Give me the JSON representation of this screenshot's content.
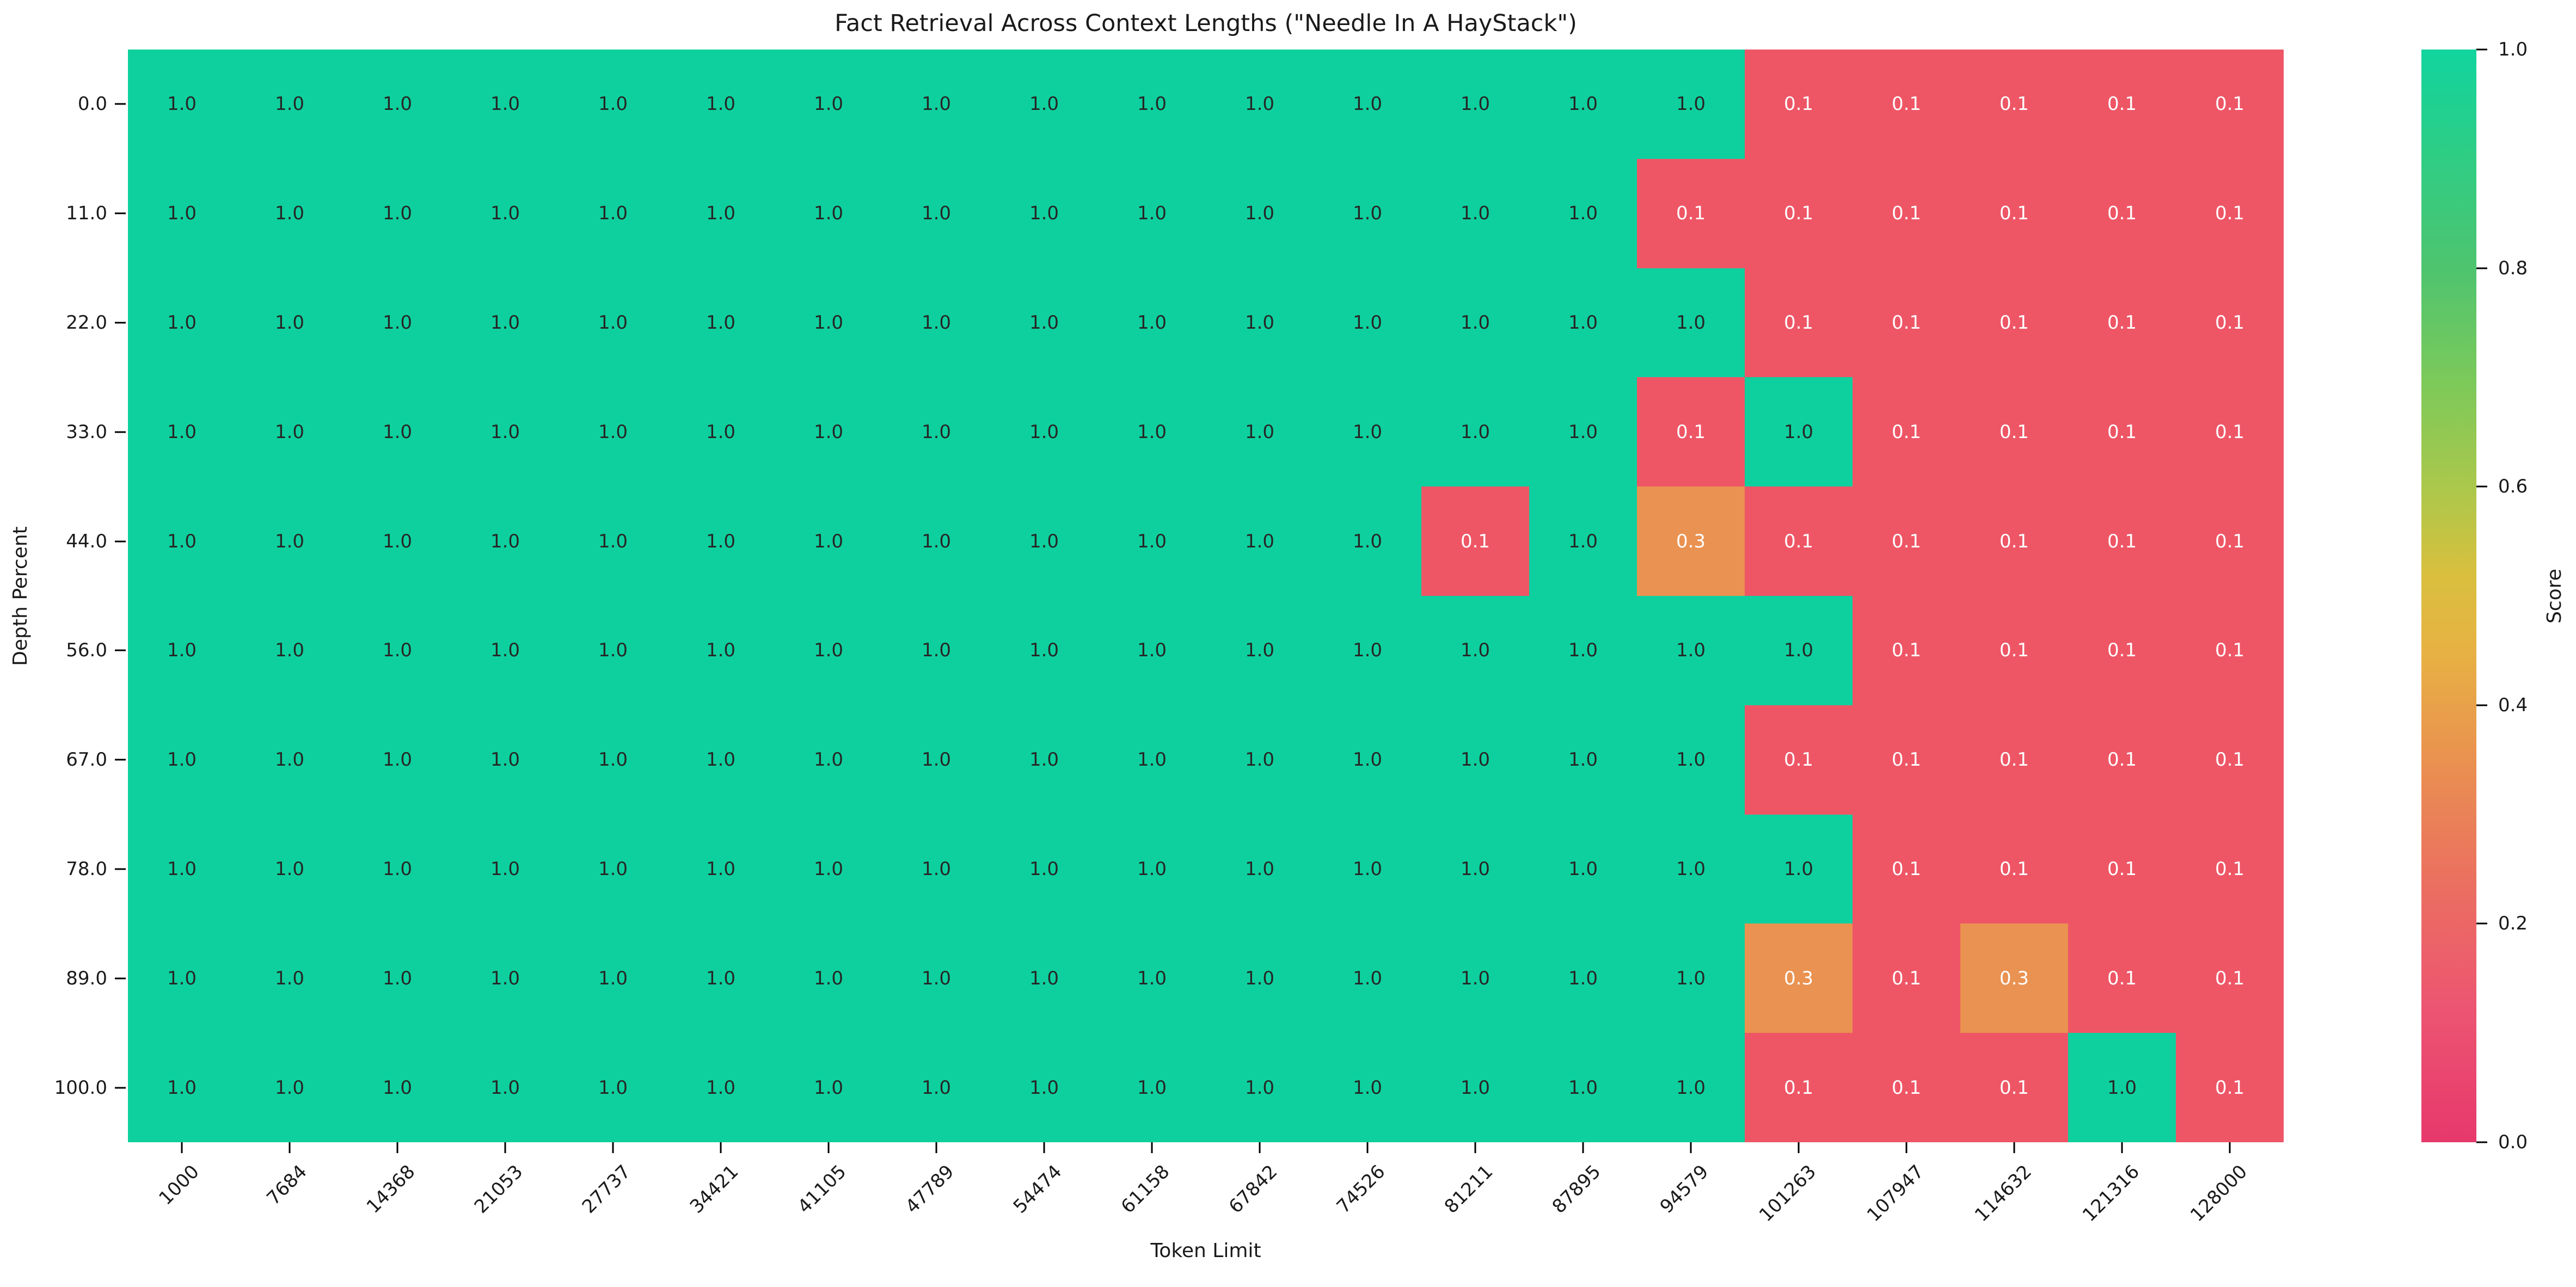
{
  "chart_data": {
    "type": "heatmap",
    "title": "Fact Retrieval Across Context Lengths (\"Needle In A HayStack\")",
    "xlabel": "Token Limit",
    "ylabel": "Depth Percent",
    "colorbar_label": "Score",
    "colorbar_ticks": [
      "1.0",
      "0.8",
      "0.6",
      "0.4",
      "0.2",
      "0.0"
    ],
    "colorbar_range": [
      0.0,
      1.0
    ],
    "x_categories": [
      "1000",
      "7684",
      "14368",
      "21053",
      "27737",
      "34421",
      "41105",
      "47789",
      "54474",
      "61158",
      "67842",
      "74526",
      "81211",
      "87895",
      "94579",
      "101263",
      "107947",
      "114632",
      "121316",
      "128000"
    ],
    "y_categories": [
      "0.0",
      "11.0",
      "22.0",
      "33.0",
      "44.0",
      "56.0",
      "67.0",
      "78.0",
      "89.0",
      "100.0"
    ],
    "rows": [
      [
        "1.0",
        "1.0",
        "1.0",
        "1.0",
        "1.0",
        "1.0",
        "1.0",
        "1.0",
        "1.0",
        "1.0",
        "1.0",
        "1.0",
        "1.0",
        "1.0",
        "1.0",
        "0.1",
        "0.1",
        "0.1",
        "0.1",
        "0.1"
      ],
      [
        "1.0",
        "1.0",
        "1.0",
        "1.0",
        "1.0",
        "1.0",
        "1.0",
        "1.0",
        "1.0",
        "1.0",
        "1.0",
        "1.0",
        "1.0",
        "1.0",
        "0.1",
        "0.1",
        "0.1",
        "0.1",
        "0.1",
        "0.1"
      ],
      [
        "1.0",
        "1.0",
        "1.0",
        "1.0",
        "1.0",
        "1.0",
        "1.0",
        "1.0",
        "1.0",
        "1.0",
        "1.0",
        "1.0",
        "1.0",
        "1.0",
        "1.0",
        "0.1",
        "0.1",
        "0.1",
        "0.1",
        "0.1"
      ],
      [
        "1.0",
        "1.0",
        "1.0",
        "1.0",
        "1.0",
        "1.0",
        "1.0",
        "1.0",
        "1.0",
        "1.0",
        "1.0",
        "1.0",
        "1.0",
        "1.0",
        "0.1",
        "1.0",
        "0.1",
        "0.1",
        "0.1",
        "0.1"
      ],
      [
        "1.0",
        "1.0",
        "1.0",
        "1.0",
        "1.0",
        "1.0",
        "1.0",
        "1.0",
        "1.0",
        "1.0",
        "1.0",
        "1.0",
        "0.1",
        "1.0",
        "0.3",
        "0.1",
        "0.1",
        "0.1",
        "0.1",
        "0.1"
      ],
      [
        "1.0",
        "1.0",
        "1.0",
        "1.0",
        "1.0",
        "1.0",
        "1.0",
        "1.0",
        "1.0",
        "1.0",
        "1.0",
        "1.0",
        "1.0",
        "1.0",
        "1.0",
        "1.0",
        "0.1",
        "0.1",
        "0.1",
        "0.1"
      ],
      [
        "1.0",
        "1.0",
        "1.0",
        "1.0",
        "1.0",
        "1.0",
        "1.0",
        "1.0",
        "1.0",
        "1.0",
        "1.0",
        "1.0",
        "1.0",
        "1.0",
        "1.0",
        "0.1",
        "0.1",
        "0.1",
        "0.1",
        "0.1"
      ],
      [
        "1.0",
        "1.0",
        "1.0",
        "1.0",
        "1.0",
        "1.0",
        "1.0",
        "1.0",
        "1.0",
        "1.0",
        "1.0",
        "1.0",
        "1.0",
        "1.0",
        "1.0",
        "1.0",
        "0.1",
        "0.1",
        "0.1",
        "0.1"
      ],
      [
        "1.0",
        "1.0",
        "1.0",
        "1.0",
        "1.0",
        "1.0",
        "1.0",
        "1.0",
        "1.0",
        "1.0",
        "1.0",
        "1.0",
        "1.0",
        "1.0",
        "1.0",
        "0.3",
        "0.1",
        "0.3",
        "0.1",
        "0.1"
      ],
      [
        "1.0",
        "1.0",
        "1.0",
        "1.0",
        "1.0",
        "1.0",
        "1.0",
        "1.0",
        "1.0",
        "1.0",
        "1.0",
        "1.0",
        "1.0",
        "1.0",
        "1.0",
        "0.1",
        "0.1",
        "0.1",
        "1.0",
        "0.1"
      ]
    ],
    "cell_colors": {
      "1.0": "#0ed09e",
      "0.3": "#ea9251",
      "0.1": "#ee5666"
    },
    "cell_text_colors": {
      "1.0": "#262626",
      "0.3": "#ffffff",
      "0.1": "#ffffff"
    },
    "colorbar_gradient": [
      "#11d49e 0%",
      "#2fcd84 10%",
      "#4ec46f 20%",
      "#7ac95b 30%",
      "#aac84b 40%",
      "#d9bf3e 48%",
      "#e7b243 55%",
      "#ea9150 65%",
      "#eb7060 76%",
      "#ec5472 88%",
      "#e7386c 100%"
    ],
    "grid": "off",
    "legend_position": "colorbar-right"
  }
}
